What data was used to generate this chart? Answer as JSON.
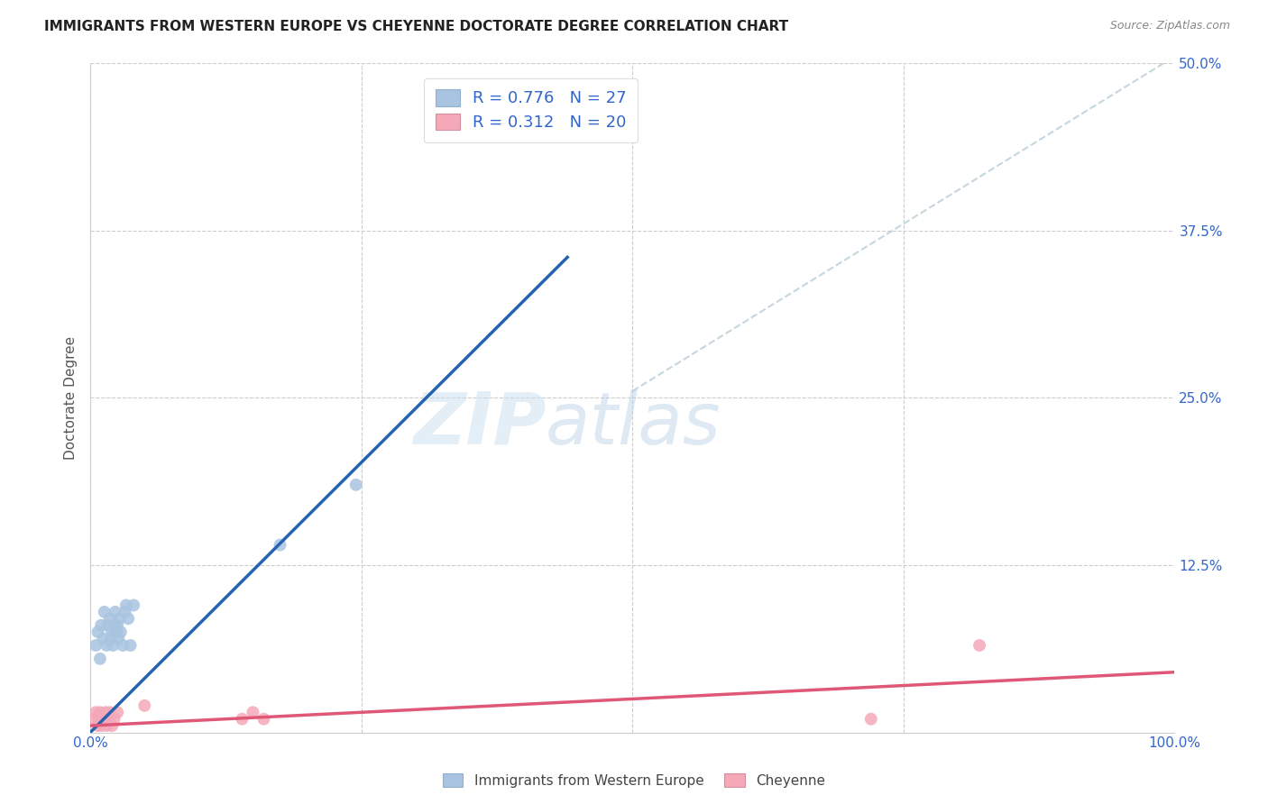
{
  "title": "IMMIGRANTS FROM WESTERN EUROPE VS CHEYENNE DOCTORATE DEGREE CORRELATION CHART",
  "source": "Source: ZipAtlas.com",
  "ylabel": "Doctorate Degree",
  "xlim": [
    0.0,
    1.0
  ],
  "ylim": [
    0.0,
    0.5
  ],
  "xticks": [
    0.0,
    0.25,
    0.5,
    0.75,
    1.0
  ],
  "xtick_labels": [
    "0.0%",
    "",
    "",
    "",
    "100.0%"
  ],
  "yticks": [
    0.0,
    0.125,
    0.25,
    0.375,
    0.5
  ],
  "ytick_labels": [
    "",
    "12.5%",
    "25.0%",
    "37.5%",
    "50.0%"
  ],
  "blue_r": 0.776,
  "blue_n": 27,
  "pink_r": 0.312,
  "pink_n": 20,
  "blue_color": "#a8c4e0",
  "pink_color": "#f4a8b8",
  "blue_line_color": "#2563b0",
  "pink_line_color": "#e05878",
  "diag_line_color": "#b8ccd8",
  "watermark_zip": "ZIP",
  "watermark_atlas": "atlas",
  "blue_line_x": [
    0.0,
    0.44
  ],
  "blue_line_y": [
    0.0,
    0.355
  ],
  "pink_line_x": [
    0.0,
    1.0
  ],
  "pink_line_y": [
    0.005,
    0.045
  ],
  "diag_line_x": [
    0.5,
    1.0
  ],
  "diag_line_y": [
    0.255,
    0.505
  ],
  "blue_scatter_x": [
    0.005,
    0.007,
    0.009,
    0.01,
    0.012,
    0.013,
    0.015,
    0.016,
    0.018,
    0.019,
    0.02,
    0.021,
    0.022,
    0.023,
    0.024,
    0.025,
    0.026,
    0.027,
    0.028,
    0.03,
    0.032,
    0.033,
    0.035,
    0.037,
    0.04,
    0.175,
    0.245
  ],
  "blue_scatter_y": [
    0.065,
    0.075,
    0.055,
    0.08,
    0.07,
    0.09,
    0.065,
    0.08,
    0.085,
    0.07,
    0.075,
    0.065,
    0.08,
    0.09,
    0.075,
    0.08,
    0.07,
    0.085,
    0.075,
    0.065,
    0.09,
    0.095,
    0.085,
    0.065,
    0.095,
    0.14,
    0.185
  ],
  "pink_scatter_x": [
    0.003,
    0.005,
    0.007,
    0.008,
    0.009,
    0.01,
    0.012,
    0.014,
    0.015,
    0.017,
    0.018,
    0.02,
    0.022,
    0.025,
    0.05,
    0.14,
    0.15,
    0.16,
    0.72,
    0.82
  ],
  "pink_scatter_y": [
    0.01,
    0.015,
    0.005,
    0.01,
    0.015,
    0.005,
    0.01,
    0.015,
    0.005,
    0.01,
    0.015,
    0.005,
    0.01,
    0.015,
    0.02,
    0.01,
    0.015,
    0.01,
    0.01,
    0.065
  ],
  "legend_label_blue": "Immigrants from Western Europe",
  "legend_label_pink": "Cheyenne",
  "legend_text_color": "#3366cc",
  "tick_color": "#3366cc",
  "title_color": "#222222",
  "source_color": "#888888",
  "grid_color": "#cccccc",
  "marker_size": 100
}
